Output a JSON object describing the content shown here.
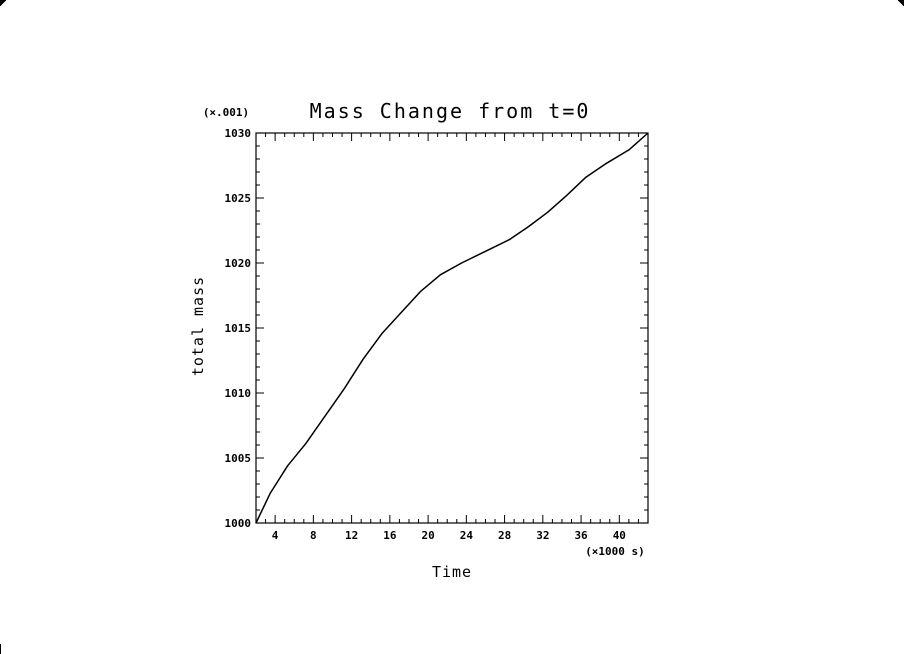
{
  "chart_data": {
    "type": "line",
    "title": "Mass Change from t=0",
    "xlabel": "Time",
    "ylabel": "total mass",
    "x_scale_note": "(×1000 s)",
    "y_scale_note": "(×.001)",
    "xlim": [
      2,
      43
    ],
    "ylim": [
      1000,
      1030
    ],
    "x_ticks": [
      4,
      8,
      12,
      16,
      20,
      24,
      28,
      32,
      36,
      40
    ],
    "y_ticks": [
      1000,
      1005,
      1010,
      1015,
      1020,
      1025,
      1030
    ],
    "x_minor_step": 1,
    "y_minor_step": 1,
    "grid": false,
    "series": [
      {
        "color": "#000000",
        "x": [
          2,
          3.5,
          5.3,
          7.2,
          9.1,
          11.2,
          13.2,
          15.2,
          17.2,
          19.2,
          21.3,
          23.5,
          26,
          28.5,
          30.5,
          32.5,
          34.5,
          36.5,
          38.5,
          41,
          43
        ],
        "y": [
          1000,
          1002.3,
          1004.4,
          1006.1,
          1008.1,
          1010.3,
          1012.6,
          1014.6,
          1016.2,
          1017.8,
          1019.1,
          1020,
          1020.9,
          1021.8,
          1022.8,
          1023.9,
          1025.2,
          1026.6,
          1027.6,
          1028.7,
          1030
        ]
      }
    ]
  }
}
